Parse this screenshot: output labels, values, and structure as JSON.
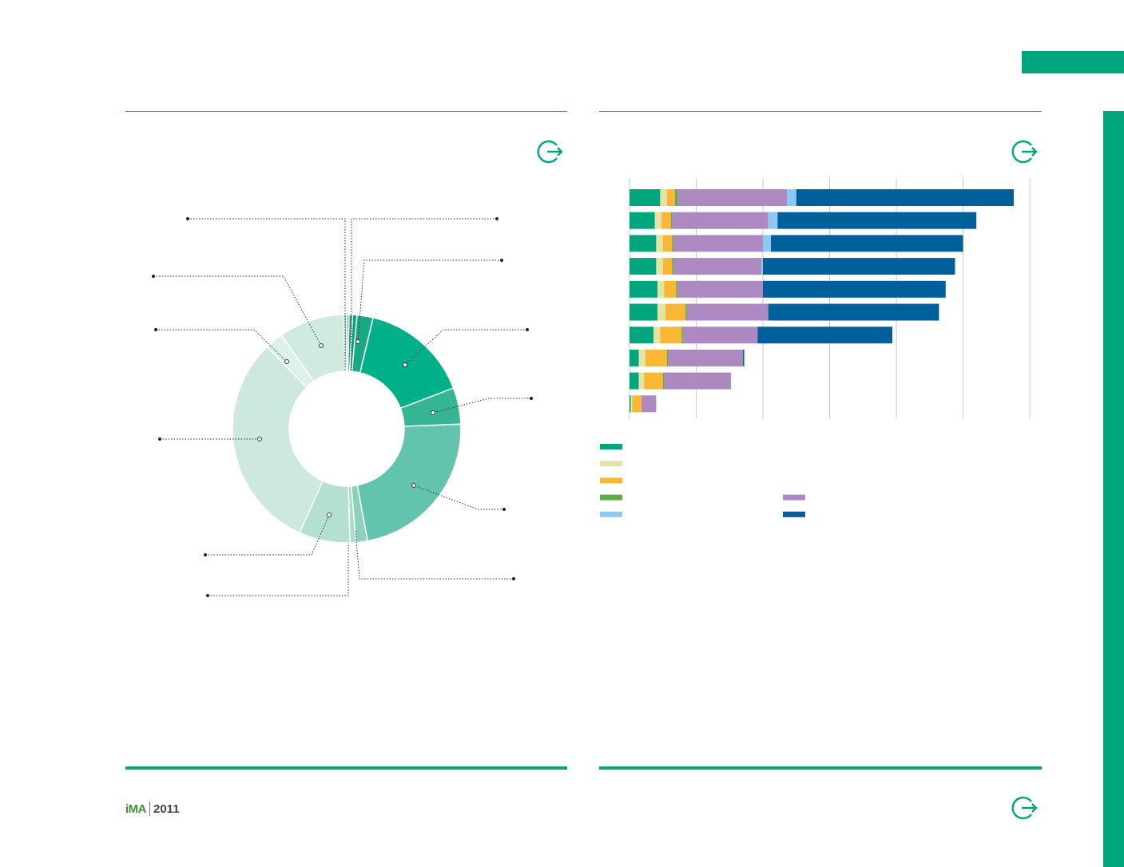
{
  "branding": {
    "logo_brand": "iMA",
    "logo_year": "2011"
  },
  "colors": {
    "accent": "#00a67e"
  },
  "icons": {
    "exit": "exit-arrow-icon"
  },
  "chart_data": [
    {
      "type": "pie",
      "donut": true,
      "title": "",
      "slices": [
        {
          "value": 0.5,
          "color": "#2f9a77"
        },
        {
          "value": 0.6,
          "color": "#00a67e"
        },
        {
          "value": 2.2,
          "color": "#18a982"
        },
        {
          "value": 15.0,
          "color": "#00b088"
        },
        {
          "value": 5.0,
          "color": "#35b592"
        },
        {
          "value": 22.0,
          "color": "#62c4aa"
        },
        {
          "value": 1.6,
          "color": "#8cd1bc"
        },
        {
          "value": 0.8,
          "color": "#a9dccb"
        },
        {
          "value": 7.0,
          "color": "#b4e0d2"
        },
        {
          "value": 30.0,
          "color": "#cde9df"
        },
        {
          "value": 2.5,
          "color": "#ddf1ea"
        },
        {
          "value": 9.0,
          "color": "#d0eadf"
        },
        {
          "value": 0.4,
          "color": "#8bc9b2"
        },
        {
          "value": 0.3,
          "color": "#5fb699"
        }
      ]
    },
    {
      "type": "bar",
      "orientation": "horizontal",
      "stacked": true,
      "title": "",
      "grid": true,
      "xlim": [
        0,
        30
      ],
      "x_gridlines": [
        0,
        5,
        10,
        15,
        20,
        25,
        30
      ],
      "categories": [
        "",
        "",
        "",
        "",
        "",
        "",
        "",
        "",
        "",
        ""
      ],
      "series": [
        {
          "color": "#00a67e",
          "values": [
            2.3,
            1.9,
            2.0,
            2.0,
            2.1,
            2.1,
            1.8,
            0.7,
            0.7,
            0.1
          ]
        },
        {
          "color": "#e5e3a4",
          "values": [
            0.5,
            0.5,
            0.5,
            0.5,
            0.5,
            0.6,
            0.5,
            0.5,
            0.4,
            0.1
          ]
        },
        {
          "color": "#f9b733",
          "values": [
            0.6,
            0.7,
            0.7,
            0.7,
            0.9,
            1.5,
            1.6,
            1.6,
            1.4,
            0.7
          ]
        },
        {
          "color": "#5dae48",
          "values": [
            0.2,
            0.1,
            0.1,
            0.1,
            0.1,
            0.1,
            0.1,
            0.1,
            0.1,
            0.0
          ]
        },
        {
          "color": "#ad89c1",
          "values": [
            8.2,
            7.2,
            6.7,
            6.6,
            6.4,
            6.1,
            5.6,
            5.6,
            5.0,
            1.1
          ]
        },
        {
          "color": "#8ccbef",
          "values": [
            0.7,
            0.7,
            0.6,
            0.1,
            0.0,
            0.0,
            0.0,
            0.0,
            0.0,
            0.0
          ]
        },
        {
          "color": "#00609c",
          "values": [
            16.3,
            14.9,
            14.4,
            14.4,
            13.7,
            12.8,
            10.1,
            0.1,
            0.0,
            0.0
          ]
        }
      ],
      "legend": {
        "position": "bottom-left",
        "columns": 2
      }
    }
  ]
}
